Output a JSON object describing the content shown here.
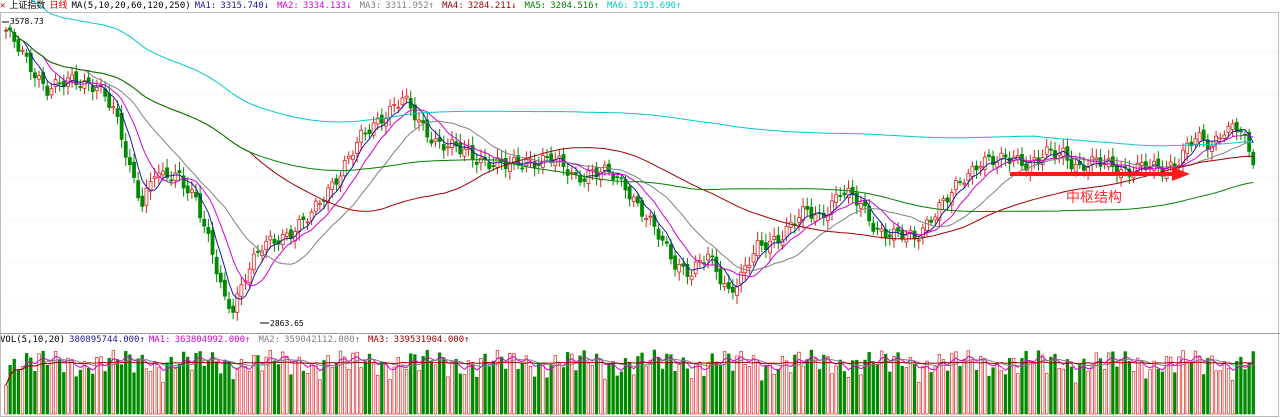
{
  "header": {
    "index_name": "上证指数",
    "period": "日线",
    "ma_params": "MA(5,10,20,60,120,250)",
    "ma": [
      {
        "label": "MA1:",
        "value": "3315.740↓",
        "color": "#1a1aa0"
      },
      {
        "label": "MA2:",
        "value": "3334.133↓",
        "color": "#d400d4"
      },
      {
        "label": "MA3:",
        "value": "3311.952↑",
        "color": "#808080"
      },
      {
        "label": "MA4:",
        "value": "3284.211↓",
        "color": "#a00000"
      },
      {
        "label": "MA5:",
        "value": "3204.516↑",
        "color": "#008000"
      },
      {
        "label": "MA6:",
        "value": "3193.690↑",
        "color": "#00c8c8"
      }
    ]
  },
  "price_labels": {
    "high": "3578.73",
    "low": "2863.65"
  },
  "annotation": {
    "text": "中枢结构"
  },
  "volume_header": {
    "params": "VOL(5,10,20)",
    "vol_value": "380895744.000↑",
    "ma": [
      {
        "label": "MA1:",
        "value": "363804992.000↑",
        "color": "#d400d4"
      },
      {
        "label": "MA2:",
        "value": "359042112.000↑",
        "color": "#808080"
      },
      {
        "label": "MA3:",
        "value": "339531904.000↑",
        "color": "#a00000"
      }
    ]
  },
  "colors": {
    "up": "#e02020",
    "down": "#008a00",
    "grid": "#d8d8d8",
    "arrow": "#ff1a1a"
  },
  "chart_data": {
    "type": "candlestick",
    "title": "上证指数 日线",
    "ylim": [
      2820,
      3600
    ],
    "annotated_high": 3578.73,
    "annotated_low": 2863.65,
    "close_path_anchors": [
      [
        0,
        3560
      ],
      [
        5,
        3480
      ],
      [
        10,
        3420
      ],
      [
        16,
        3430
      ],
      [
        22,
        3430
      ],
      [
        26,
        3360
      ],
      [
        30,
        3220
      ],
      [
        33,
        3140
      ],
      [
        36,
        3210
      ],
      [
        38,
        3190
      ],
      [
        42,
        3200
      ],
      [
        46,
        3150
      ],
      [
        50,
        3000
      ],
      [
        53,
        2890
      ],
      [
        55,
        2880
      ],
      [
        58,
        2960
      ],
      [
        62,
        3020
      ],
      [
        68,
        3060
      ],
      [
        74,
        3100
      ],
      [
        80,
        3200
      ],
      [
        86,
        3290
      ],
      [
        92,
        3360
      ],
      [
        96,
        3390
      ],
      [
        100,
        3330
      ],
      [
        104,
        3290
      ],
      [
        110,
        3260
      ],
      [
        116,
        3240
      ],
      [
        122,
        3220
      ],
      [
        126,
        3240
      ],
      [
        132,
        3240
      ],
      [
        138,
        3200
      ],
      [
        142,
        3210
      ],
      [
        147,
        3200
      ],
      [
        150,
        3180
      ],
      [
        156,
        3080
      ],
      [
        162,
        2990
      ],
      [
        166,
        2960
      ],
      [
        170,
        3000
      ],
      [
        175,
        2920
      ],
      [
        178,
        2950
      ],
      [
        182,
        3020
      ],
      [
        188,
        3060
      ],
      [
        194,
        3110
      ],
      [
        197,
        3100
      ],
      [
        202,
        3160
      ],
      [
        207,
        3130
      ],
      [
        211,
        3070
      ],
      [
        215,
        3050
      ],
      [
        220,
        3050
      ],
      [
        224,
        3100
      ],
      [
        228,
        3140
      ],
      [
        232,
        3200
      ],
      [
        236,
        3240
      ],
      [
        240,
        3230
      ],
      [
        244,
        3250
      ],
      [
        248,
        3230
      ],
      [
        252,
        3250
      ],
      [
        256,
        3260
      ],
      [
        260,
        3220
      ],
      [
        264,
        3230
      ],
      [
        268,
        3230
      ],
      [
        272,
        3210
      ],
      [
        276,
        3220
      ],
      [
        280,
        3220
      ],
      [
        284,
        3240
      ],
      [
        288,
        3290
      ],
      [
        292,
        3280
      ],
      [
        295,
        3320
      ],
      [
        299,
        3310
      ],
      [
        301,
        3250
      ],
      [
        302,
        3240
      ]
    ],
    "volume_ylim": [
      0,
      1
    ]
  }
}
